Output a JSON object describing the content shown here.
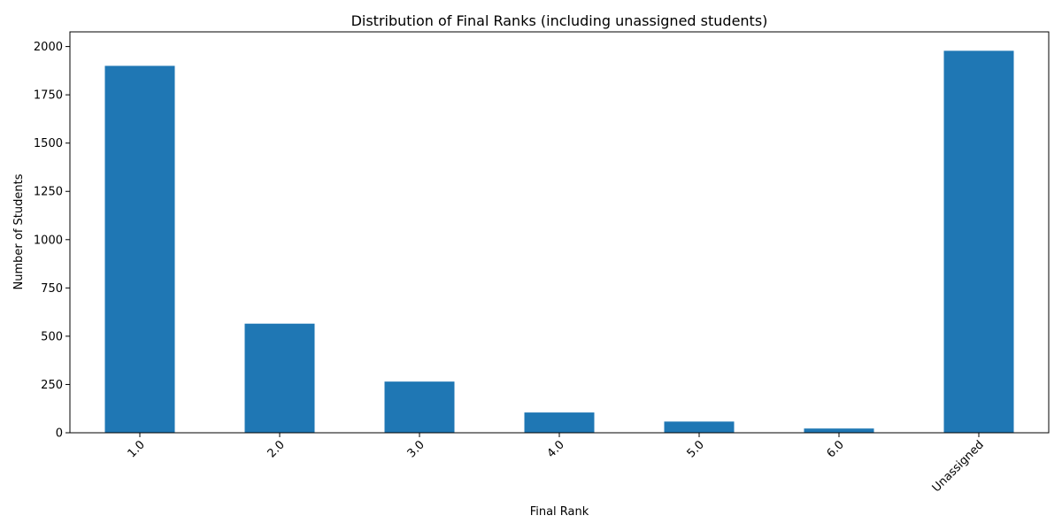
{
  "chart_data": {
    "type": "bar",
    "title": "Distribution of Final Ranks (including unassigned students)",
    "xlabel": "Final Rank",
    "ylabel": "Number of Students",
    "categories": [
      "1.0",
      "2.0",
      "3.0",
      "4.0",
      "5.0",
      "6.0",
      "Unassigned"
    ],
    "values": [
      1900,
      565,
      265,
      105,
      58,
      22,
      1978
    ],
    "ylim": [
      0,
      2076
    ],
    "yticks": [
      0,
      250,
      500,
      750,
      1000,
      1250,
      1500,
      1750,
      2000
    ],
    "ytick_labels": [
      "0",
      "250",
      "500",
      "750",
      "1000",
      "1250",
      "1500",
      "1750",
      "2000"
    ],
    "bar_color": "#1f77b4",
    "grid": false,
    "legend": "none",
    "xtick_rotation": 45
  }
}
